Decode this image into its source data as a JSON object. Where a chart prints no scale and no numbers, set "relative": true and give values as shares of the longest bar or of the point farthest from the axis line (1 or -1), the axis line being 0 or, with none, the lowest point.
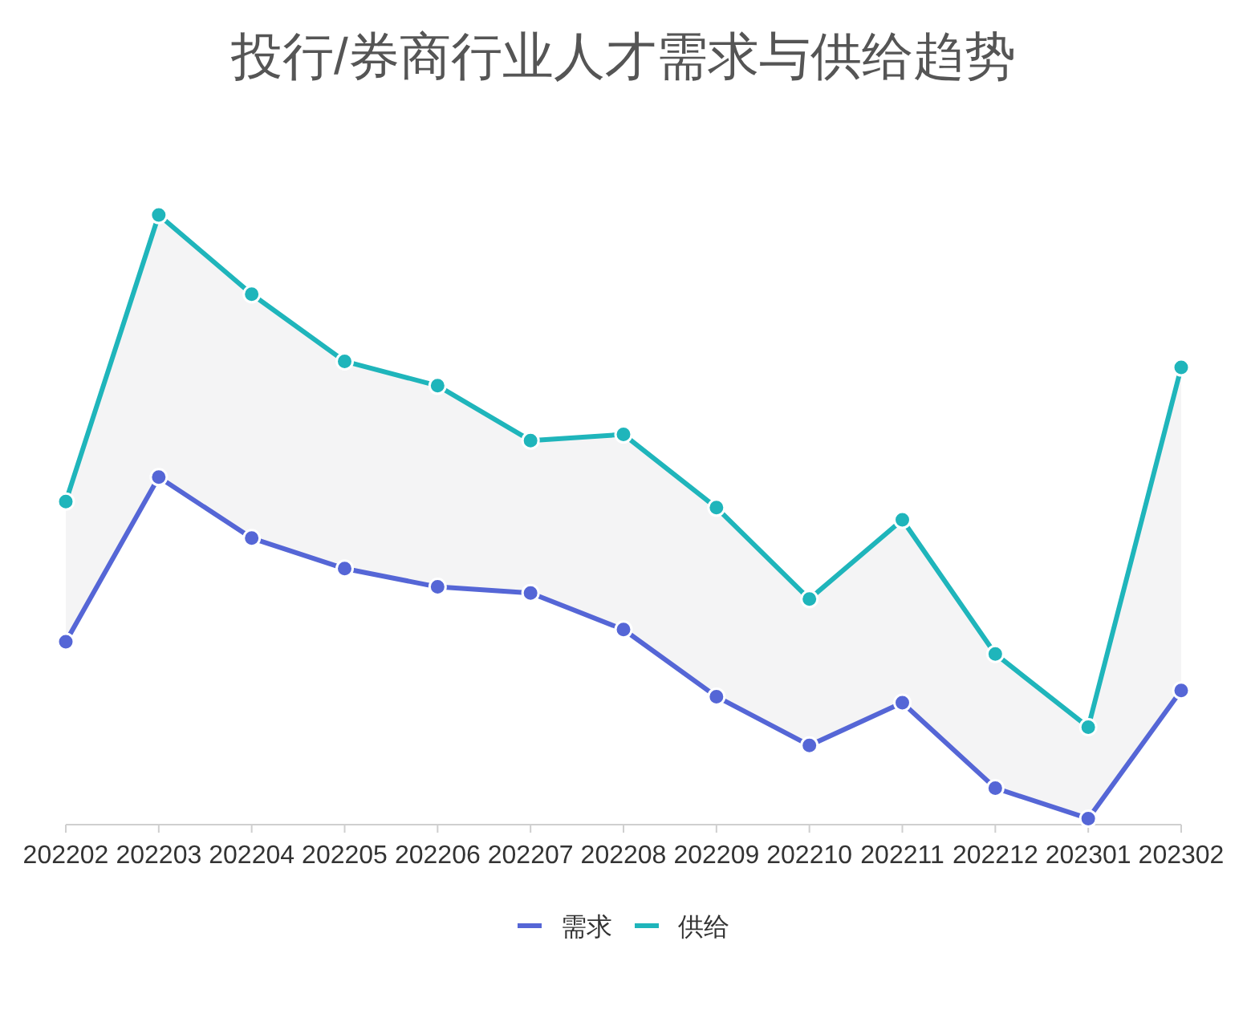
{
  "chart_data": {
    "type": "line",
    "title": "投行/券商行业人才需求与供给趋势",
    "categories": [
      "202202",
      "202203",
      "202204",
      "202205",
      "202206",
      "202207",
      "202208",
      "202209",
      "202210",
      "202211",
      "202212",
      "202301",
      "202302"
    ],
    "relative": true,
    "marker": "circle",
    "line_style": "solid",
    "legend": "bottom",
    "series": [
      {
        "name": "需求",
        "color": "#5566d6",
        "values": [
          0.3,
          0.57,
          0.47,
          0.42,
          0.39,
          0.38,
          0.32,
          0.21,
          0.13,
          0.2,
          0.06,
          0.01,
          0.22
        ]
      },
      {
        "name": "供给",
        "color": "#1fb5bb",
        "values": [
          0.53,
          1,
          0.87,
          0.76,
          0.72,
          0.63,
          0.64,
          0.52,
          0.37,
          0.5,
          0.28,
          0.16,
          0.75
        ],
        "lower": [
          0.3,
          0.57,
          0.47,
          0.42,
          0.39,
          0.38,
          0.32,
          0.21,
          0.13,
          0.2,
          0.06,
          0.01,
          0.22
        ],
        "upper": [
          0.53,
          1,
          0.87,
          0.76,
          0.72,
          0.63,
          0.64,
          0.52,
          0.37,
          0.5,
          0.28,
          0.16,
          0.75
        ]
      }
    ]
  }
}
